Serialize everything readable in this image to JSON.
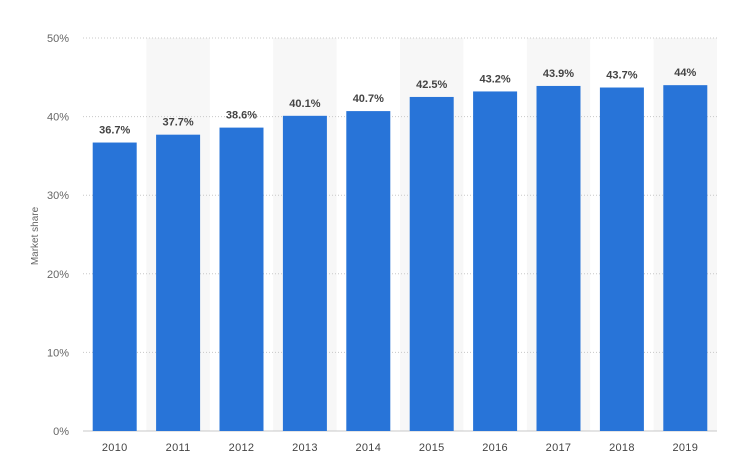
{
  "chart_data": {
    "type": "bar",
    "title": "",
    "xlabel": "",
    "ylabel": "Market share",
    "categories": [
      "2010",
      "2011",
      "2012",
      "2013",
      "2014",
      "2015",
      "2016",
      "2017",
      "2018",
      "2019"
    ],
    "values": [
      36.7,
      37.7,
      38.6,
      40.1,
      40.7,
      42.5,
      43.2,
      43.9,
      43.7,
      44
    ],
    "data_labels": [
      "36.7%",
      "37.7%",
      "38.6%",
      "40.1%",
      "40.7%",
      "42.5%",
      "43.2%",
      "43.9%",
      "43.7%",
      "44%"
    ],
    "ylim": [
      0,
      50
    ],
    "yticks": [
      0,
      10,
      20,
      30,
      40,
      50
    ],
    "ytick_labels": [
      "0%",
      "10%",
      "20%",
      "30%",
      "40%",
      "50%"
    ],
    "grid": true,
    "legend": "none",
    "bar_color": "#2874d8",
    "band_color": "#f7f7f7",
    "grid_color": "#c8c8c8"
  }
}
